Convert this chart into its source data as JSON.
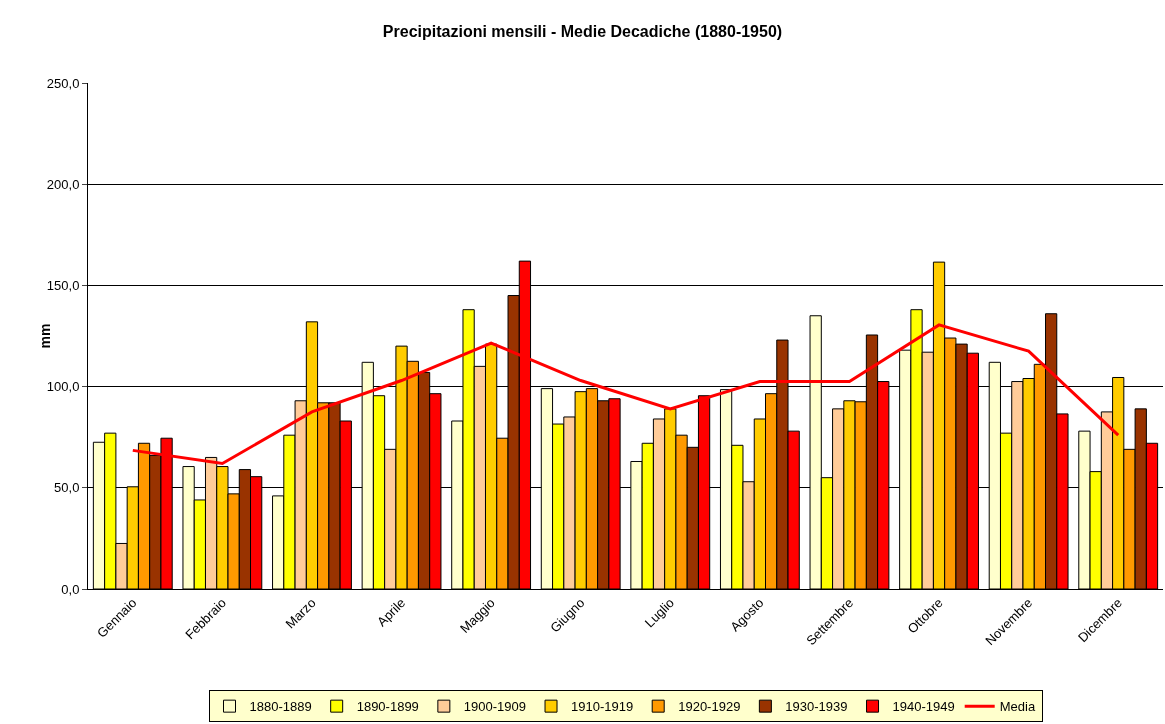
{
  "chart_data": {
    "type": "bar",
    "title": "Precipitazioni mensili - Medie Decadiche (1880-1950)",
    "ylabel": "mm",
    "categories": [
      "Gennaio",
      "Febbraio",
      "Marzo",
      "Aprile",
      "Maggio",
      "Giugno",
      "Luglio",
      "Agosto",
      "Settembre",
      "Ottobre",
      "Novembre",
      "Dicembre"
    ],
    "series": [
      {
        "name": "1880-1889",
        "color": "#ffffcc",
        "values": [
          72.5,
          60.5,
          46,
          112,
          83,
          99,
          63,
          98.5,
          135,
          118,
          112,
          78
        ]
      },
      {
        "name": "1890-1899",
        "color": "#ffff00",
        "values": [
          77,
          44,
          76,
          95.5,
          138,
          81.5,
          72,
          71,
          55,
          138,
          77,
          58
        ]
      },
      {
        "name": "1900-1909",
        "color": "#ffcc99",
        "values": [
          22.5,
          65,
          93,
          69,
          110,
          85,
          84,
          53,
          89,
          117,
          102.5,
          87.5
        ]
      },
      {
        "name": "1910-1919",
        "color": "#ffcc00",
        "values": [
          50.5,
          60.5,
          132,
          120,
          121,
          97.5,
          89,
          84,
          93,
          161.5,
          104,
          104.5
        ]
      },
      {
        "name": "1920-1929",
        "color": "#ff9900",
        "values": [
          72,
          47,
          92,
          112.5,
          74.5,
          99,
          76,
          96.5,
          92.5,
          124,
          111,
          69
        ]
      },
      {
        "name": "1930-1939",
        "color": "#993300",
        "values": [
          66,
          59,
          92,
          107,
          145,
          93,
          70,
          123,
          125.5,
          121,
          136,
          89
        ]
      },
      {
        "name": "1940-1949",
        "color": "#ff0000",
        "values": [
          74.5,
          55.5,
          83,
          96.5,
          162,
          94,
          95.5,
          78,
          102.5,
          116.5,
          86.5,
          72
        ]
      },
      {
        "name": "Media",
        "type": "line",
        "color": "#ff0000",
        "values": [
          68.5,
          62,
          87.5,
          103,
          121.5,
          103,
          89,
          102.5,
          102.5,
          130.5,
          117.5,
          76
        ]
      }
    ],
    "ylim": [
      0,
      250
    ],
    "yticks": [
      {
        "value": 0,
        "label": "0,0"
      },
      {
        "value": 50,
        "label": "50,0"
      },
      {
        "value": 100,
        "label": "100,0"
      },
      {
        "value": 150,
        "label": "150,0"
      },
      {
        "value": 200,
        "label": "200,0"
      },
      {
        "value": 250,
        "label": "250,0"
      }
    ],
    "grid": "y",
    "legend": "bottom",
    "marker": "none",
    "line_style": "solid"
  }
}
